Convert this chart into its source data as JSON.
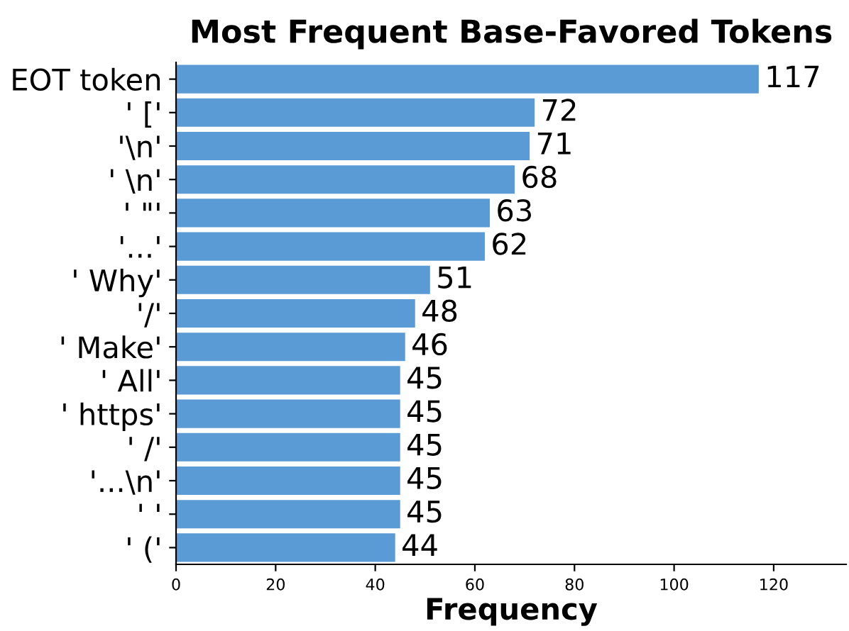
{
  "chart_data": {
    "type": "bar",
    "orientation": "horizontal",
    "title": "Most Frequent Base-Favored Tokens",
    "xlabel": "Frequency",
    "categories": [
      "EOT token",
      "' ['",
      "'\\n'",
      "' \\n'",
      "' \"'",
      "'...'",
      "' Why'",
      "'/'",
      "' Make'",
      "' All'",
      "' https'",
      "' /'",
      "'...\\n'",
      "' '",
      "' ('"
    ],
    "values": [
      117,
      72,
      71,
      68,
      63,
      62,
      51,
      48,
      46,
      45,
      45,
      45,
      45,
      45,
      44
    ],
    "color": "#5b9bd5",
    "data_labels": true,
    "xlim": [
      0,
      134.55
    ],
    "xticks": [
      0,
      20,
      40,
      60,
      80,
      100,
      120
    ]
  }
}
